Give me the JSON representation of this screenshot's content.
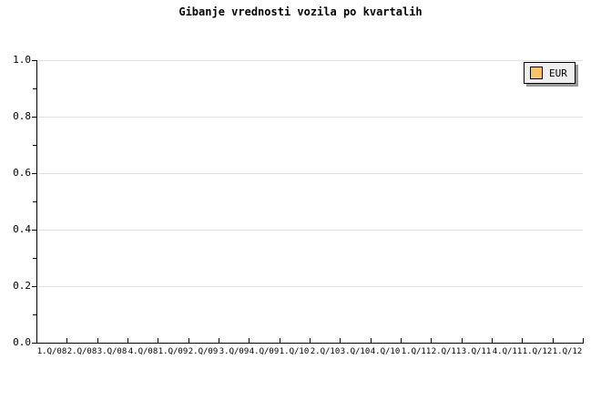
{
  "title": "Gibanje vrednosti vozila po kvartalih",
  "legend": {
    "position": "top-right",
    "items": [
      {
        "label": "EUR",
        "swatch_color": "#f9c469"
      }
    ]
  },
  "colors": {
    "background": "#ffffff",
    "text": "#000000",
    "axis": "#000000",
    "gridline": "#e0e0e0",
    "legend_background": "#efefef",
    "legend_border": "#000000",
    "legend_shadow": "#999999",
    "series_eur": "#f9c469"
  },
  "chart_data": {
    "type": "line",
    "title": "Gibanje vrednosti vozila po kvartalih",
    "categories": [
      "1.Q/08",
      "2.Q/08",
      "3.Q/08",
      "4.Q/08",
      "1.Q/09",
      "2.Q/09",
      "3.Q/09",
      "4.Q/09",
      "1.Q/10",
      "2.Q/10",
      "3.Q/10",
      "4.Q/10",
      "1.Q/11",
      "2.Q/11",
      "3.Q/11",
      "4.Q/11",
      "1.Q/12",
      "1.Q/12"
    ],
    "series": [
      {
        "name": "EUR",
        "values": []
      }
    ],
    "xlabel": "",
    "ylabel": "",
    "ylim": [
      0.0,
      1.0
    ],
    "y_tick_labels": [
      "0.0",
      "0.2",
      "0.4",
      "0.6",
      "0.8",
      "1.0"
    ],
    "y_major_step": 0.2,
    "y_minor_step": 0.1,
    "grid": "horizontal-major-only",
    "legend_position": "top-right"
  }
}
